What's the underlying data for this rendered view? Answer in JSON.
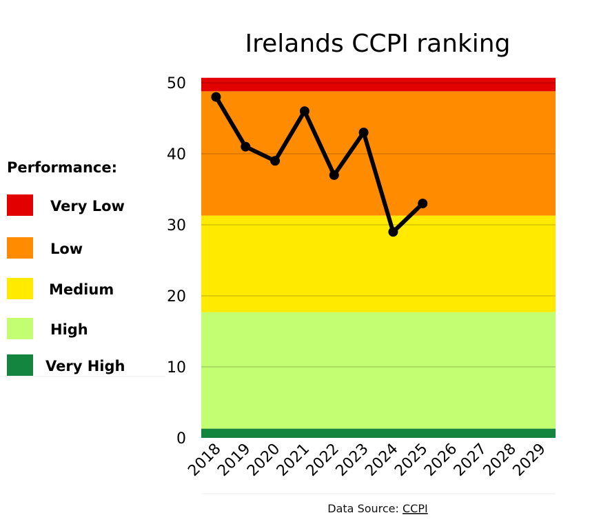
{
  "chart_data": {
    "type": "line",
    "title": "Irelands CCPI ranking",
    "categories": [
      "2018",
      "2019",
      "2020",
      "2021",
      "2022",
      "2023",
      "2024",
      "2025",
      "2026",
      "2027",
      "2028",
      "2029"
    ],
    "series": [
      {
        "values": [
          48,
          41,
          39,
          46,
          37,
          43,
          29,
          33,
          null,
          null,
          null,
          null
        ],
        "color": "#000000"
      }
    ],
    "ylim": [
      0,
      50
    ],
    "yticks": [
      0,
      10,
      20,
      30,
      40,
      50
    ],
    "grid": true,
    "bands": [
      {
        "label": "Very High",
        "from": 0,
        "to": 1.3,
        "color": "#14853f"
      },
      {
        "label": "High",
        "from": 1.3,
        "to": 17.7,
        "color": "#c3fd72"
      },
      {
        "label": "Medium",
        "from": 17.7,
        "to": 31.3,
        "color": "#ffea00"
      },
      {
        "label": "Low",
        "from": 31.3,
        "to": 48.8,
        "color": "#ff8c00"
      },
      {
        "label": "Very Low",
        "from": 48.8,
        "to": 50.7,
        "color": "#e30000"
      }
    ],
    "legend": {
      "title": "Performance:",
      "placement": "left",
      "items": [
        {
          "label": "Very Low",
          "color": "#e30000"
        },
        {
          "label": "Low",
          "color": "#ff8c00"
        },
        {
          "label": "Medium",
          "color": "#ffea00"
        },
        {
          "label": "High",
          "color": "#c3fd72"
        },
        {
          "label": "Very High",
          "color": "#14853f"
        }
      ]
    }
  },
  "source": {
    "prefix": "Data Source: ",
    "link": "CCPI"
  }
}
